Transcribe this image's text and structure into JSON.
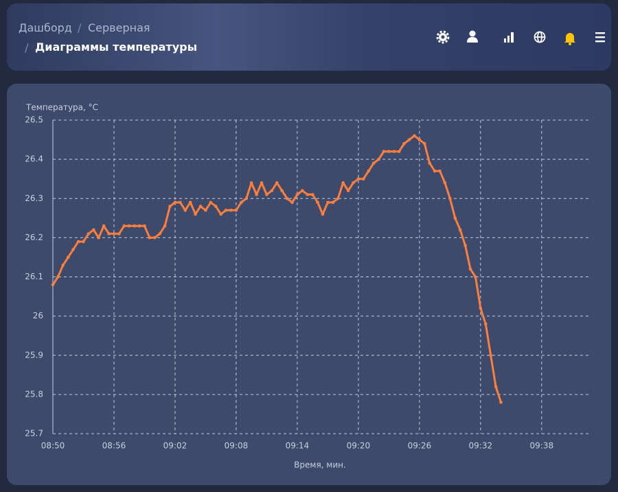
{
  "header": {
    "breadcrumbs": [
      "Дашборд",
      "Серверная",
      "Диаграммы температуры"
    ]
  },
  "chart_data": {
    "type": "line",
    "y_label": "Температура, °C",
    "x_label": "Время, мин.",
    "xlim": [
      530,
      582.8
    ],
    "ylim": [
      25.7,
      26.5
    ],
    "xticks": [
      {
        "value": 530,
        "label": "08:50"
      },
      {
        "value": 536,
        "label": "08:56"
      },
      {
        "value": 542,
        "label": "09:02"
      },
      {
        "value": 548,
        "label": "09:08"
      },
      {
        "value": 554,
        "label": "09:14"
      },
      {
        "value": 560,
        "label": "09:20"
      },
      {
        "value": 566,
        "label": "09:26"
      },
      {
        "value": 572,
        "label": "09:32"
      },
      {
        "value": 578,
        "label": "09:38"
      }
    ],
    "yticks": [
      25.7,
      25.8,
      25.9,
      26,
      26.1,
      26.2,
      26.3,
      26.4,
      26.5
    ],
    "grid": true,
    "series": [
      {
        "name": "Температура",
        "color": "#ff7f3f",
        "x": [
          530,
          530.5,
          531,
          531.5,
          532,
          532.5,
          533,
          533.5,
          534,
          534.5,
          535,
          535.5,
          536,
          536.5,
          537,
          537.5,
          538,
          538.5,
          539,
          539.5,
          540,
          540.5,
          541,
          541.5,
          542,
          542.5,
          543,
          543.5,
          544,
          544.5,
          545,
          545.5,
          546,
          546.5,
          547,
          547.5,
          548,
          548.5,
          549,
          549.5,
          550,
          550.5,
          551,
          551.5,
          552,
          552.5,
          553,
          553.5,
          554,
          554.5,
          555,
          555.5,
          556,
          556.5,
          557,
          557.5,
          558,
          558.5,
          559,
          559.5,
          560,
          560.5,
          561,
          561.5,
          562,
          562.5,
          563,
          563.5,
          564,
          564.5,
          565,
          565.5,
          566,
          566.5,
          567,
          567.5,
          568,
          568.5,
          569,
          569.5,
          570,
          570.5,
          571,
          571.5,
          572,
          572.5,
          573,
          573.5,
          574
        ],
        "values": [
          26.08,
          26.1,
          26.13,
          26.15,
          26.17,
          26.19,
          26.19,
          26.21,
          26.22,
          26.2,
          26.23,
          26.21,
          26.21,
          26.21,
          26.23,
          26.23,
          26.23,
          26.23,
          26.23,
          26.2,
          26.2,
          26.21,
          26.23,
          26.28,
          26.29,
          26.29,
          26.27,
          26.29,
          26.26,
          26.28,
          26.27,
          26.29,
          26.28,
          26.26,
          26.27,
          26.27,
          26.27,
          26.29,
          26.3,
          26.34,
          26.31,
          26.34,
          26.31,
          26.32,
          26.34,
          26.32,
          26.3,
          26.29,
          26.31,
          26.32,
          26.31,
          26.31,
          26.29,
          26.26,
          26.29,
          26.29,
          26.3,
          26.34,
          26.32,
          26.34,
          26.35,
          26.35,
          26.37,
          26.39,
          26.4,
          26.42,
          26.42,
          26.42,
          26.42,
          26.44,
          26.45,
          26.46,
          26.45,
          26.44,
          26.39,
          26.37,
          26.37,
          26.34,
          26.3,
          26.25,
          26.22,
          26.18,
          26.12,
          26.1,
          26.02,
          25.98,
          25.9,
          25.82,
          25.78
        ]
      }
    ]
  }
}
